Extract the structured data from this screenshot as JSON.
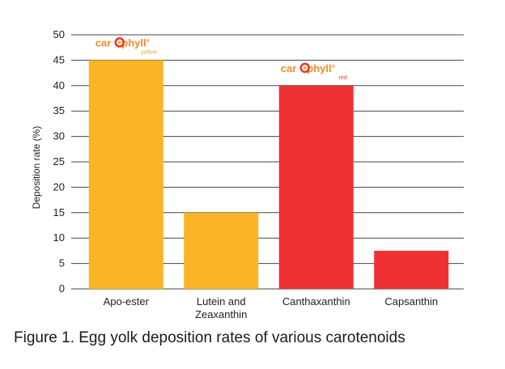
{
  "caption": "Figure 1. Egg yolk deposition rates of various carotenoids",
  "chart_data": {
    "type": "bar",
    "title": "",
    "xlabel": "",
    "ylabel": "Deposition rate (%)",
    "ylim": [
      0,
      50
    ],
    "yticks": [
      0,
      5,
      10,
      15,
      20,
      25,
      30,
      35,
      40,
      45,
      50
    ],
    "grid": true,
    "categories": [
      [
        "Apo-ester"
      ],
      [
        "Lutein and",
        "Zeaxanthin"
      ],
      [
        "Canthaxanthin"
      ],
      [
        "Capsanthin"
      ]
    ],
    "values": [
      45,
      15,
      40,
      7.5
    ],
    "bar_colors": [
      "#fbb425",
      "#fbb425",
      "#ee3032",
      "#ee3032"
    ],
    "annotations": [
      {
        "category_index": 0,
        "brand": "car",
        "brand_end": "phyll",
        "mark": "®",
        "sub": "yellow",
        "brand_color": "#f28c28",
        "sub_color": "#f6a623"
      },
      {
        "category_index": 2,
        "brand": "car",
        "brand_end": "phyll",
        "mark": "®",
        "sub": "red",
        "brand_color": "#f28c28",
        "sub_color": "#ee3032"
      }
    ]
  }
}
